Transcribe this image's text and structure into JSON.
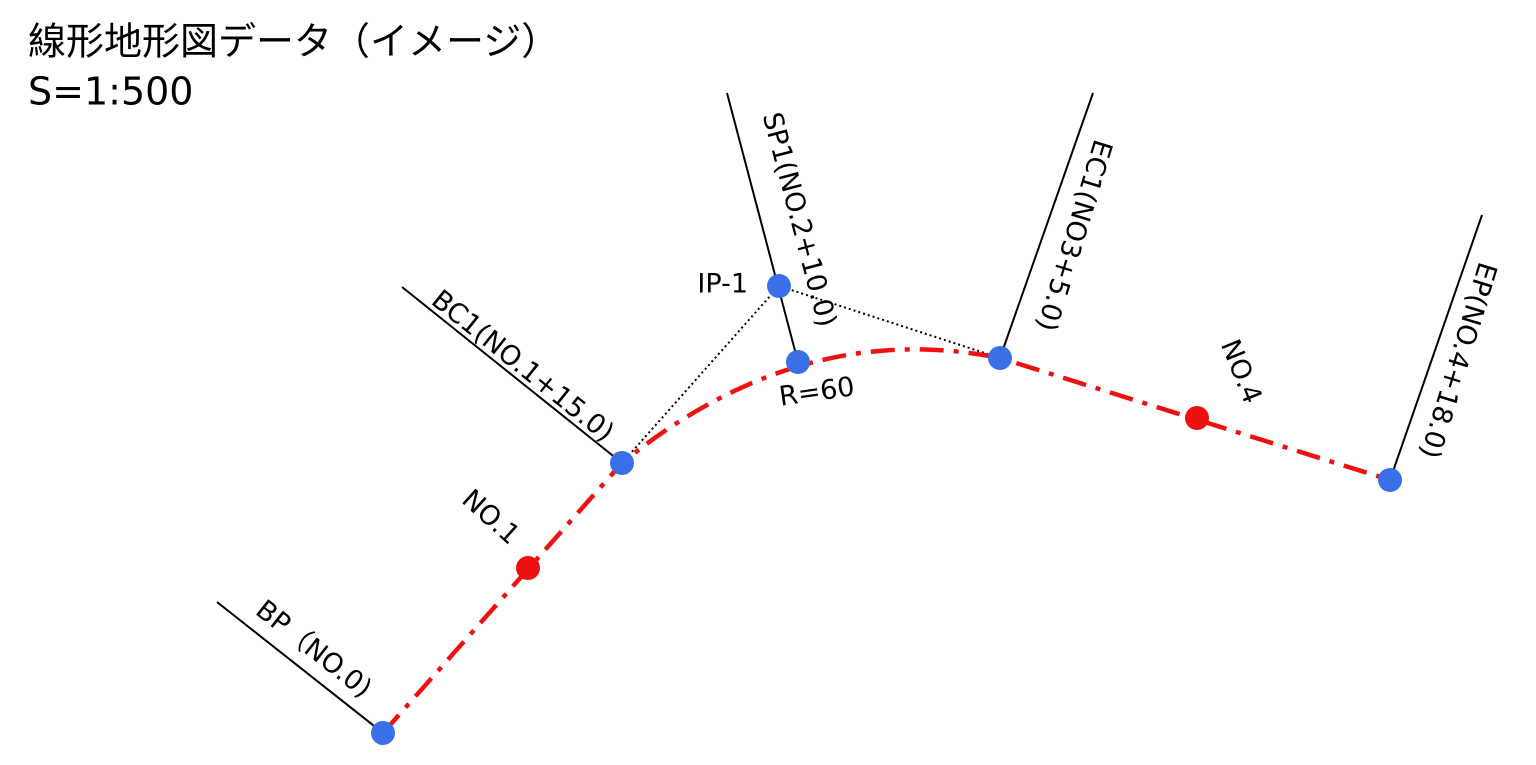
{
  "title": "線形地形図データ（イメージ）",
  "scale": "S=1:500",
  "labels": {
    "bp": "BP（NO.0)",
    "bc1": "BC1(NO.1+15.0)",
    "sp1": "SP1(NO.2+10.0)",
    "ec1": "EC1(NO3+5.0)",
    "ep": "EP(NO.4+18.0)",
    "ip1": "IP-1",
    "radius": "R=60",
    "no1": "NO.1",
    "no4": "NO.4"
  }
}
